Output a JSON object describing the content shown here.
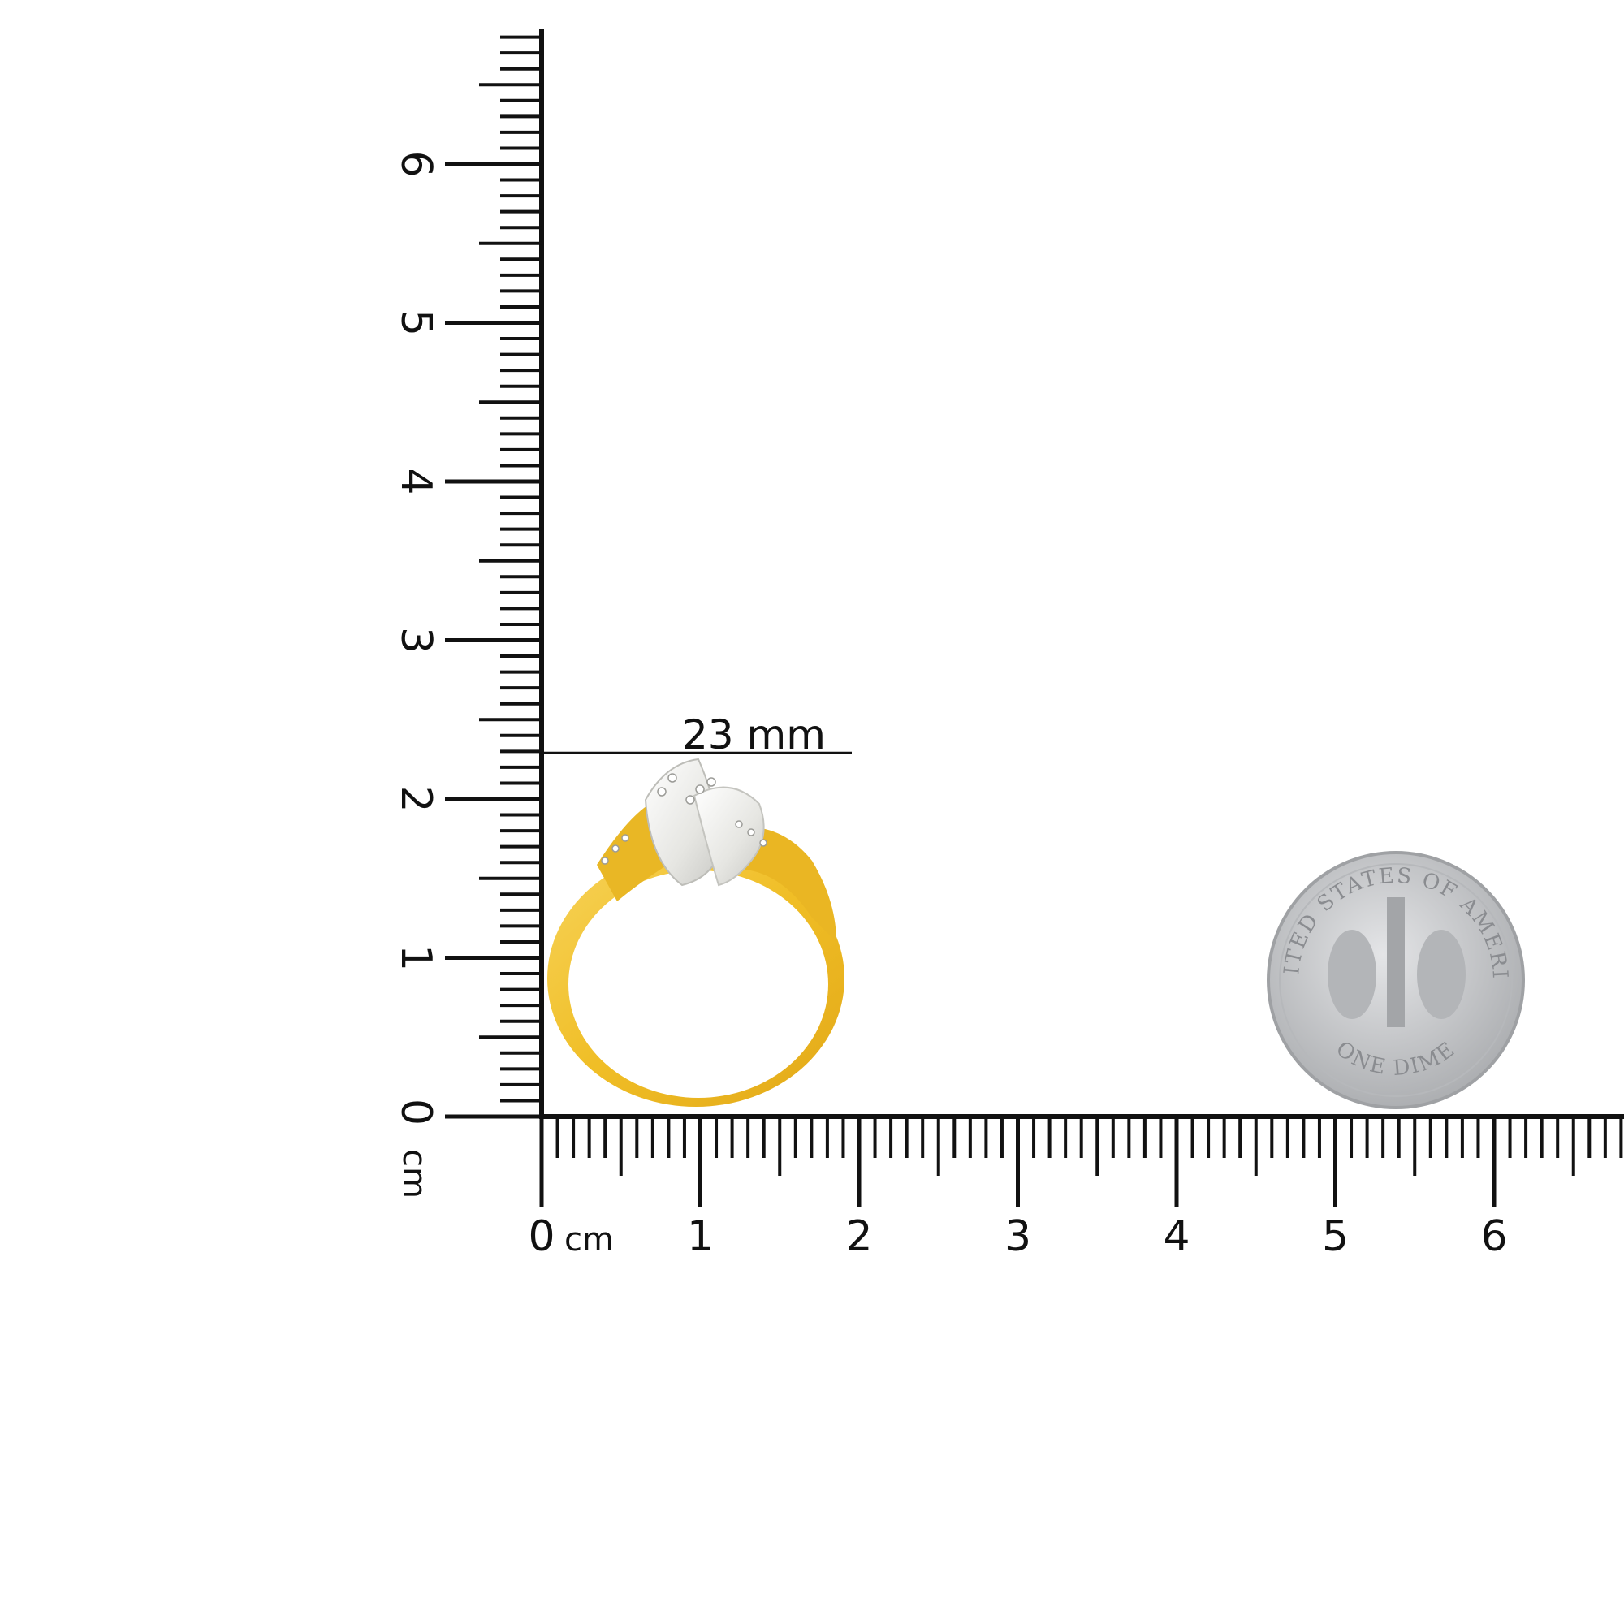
{
  "rulers": {
    "unit": "cm",
    "vertical_labels": [
      "0",
      "1",
      "2",
      "3",
      "4",
      "5",
      "6"
    ],
    "horizontal_labels": [
      "0",
      "1",
      "2",
      "3",
      "4",
      "5",
      "6"
    ]
  },
  "measurement": {
    "label": "23 mm",
    "value_mm": 23
  },
  "product": {
    "metal_colors": {
      "gold": "#f2c230",
      "white": "#e9e9e6"
    }
  },
  "coin": {
    "top_text": "UNITED STATES OF AMERICA",
    "bottom_text": "ONE DIME",
    "color": "#c9cacc"
  }
}
